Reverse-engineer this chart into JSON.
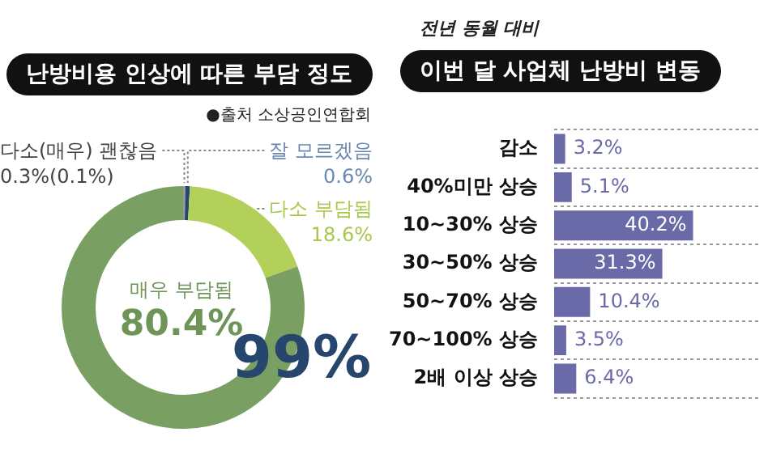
{
  "chart_data": [
    {
      "type": "donut",
      "title": "난방비용 인상에 따른 부담 정도",
      "categories": [
        "다소(매우) 괜찮음",
        "잘 모르겠음",
        "다소 부담됨",
        "매우 부담됨"
      ],
      "values": [
        0.3,
        0.6,
        18.6,
        80.4
      ],
      "colors": [
        "#9a9a9a",
        "#26466e",
        "#b3d15a",
        "#7a9f62"
      ],
      "value_labels": [
        "0.3%(0.1%)",
        "0.6%",
        "18.6%",
        "80.4%"
      ],
      "annotations": [
        "●출처 소상공인연합회",
        "99%"
      ]
    },
    {
      "type": "bar",
      "orientation": "horizontal",
      "subtitle": "전년 동월 대비",
      "title": "이번 달 사업체 난방비 변동",
      "categories": [
        "감소",
        "40%미만 상승",
        "10~30% 상승",
        "30~50% 상승",
        "50~70% 상승",
        "70~100% 상승",
        "2배 이상 상승"
      ],
      "values": [
        3.2,
        5.1,
        40.2,
        31.3,
        10.4,
        3.5,
        6.4
      ],
      "color": "#6b6aa8",
      "value_labels": [
        "3.2%",
        "5.1%",
        "40.2%",
        "31.3%",
        "10.4%",
        "3.5%",
        "6.4%"
      ],
      "grid": "y"
    }
  ]
}
